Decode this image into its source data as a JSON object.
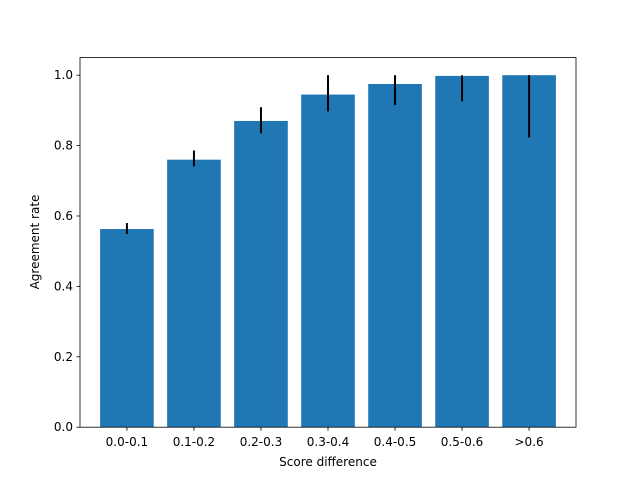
{
  "chart_data": {
    "type": "bar",
    "x_label": "Score difference",
    "y_label": "Agreement rate",
    "categories": [
      "0.0-0.1",
      "0.1-0.2",
      "0.2-0.3",
      "0.3-0.4",
      "0.4-0.5",
      "0.5-0.6",
      ">0.6"
    ],
    "values": [
      0.563,
      0.76,
      0.87,
      0.945,
      0.975,
      0.998,
      1.0
    ],
    "errors_low": [
      0.014,
      0.019,
      0.035,
      0.048,
      0.06,
      0.072,
      0.177
    ],
    "errors_high": [
      0.017,
      0.026,
      0.039,
      0.055,
      0.025,
      0.002,
      0
    ],
    "color": "#1f77b4",
    "error_color": "#000000",
    "ylim": [
      0,
      1.05
    ],
    "yticks": [
      {
        "value": 0,
        "label": "0.0"
      },
      0.2,
      0.4,
      0.6,
      0.8,
      {
        "value": 1,
        "label": "1.0"
      }
    ],
    "grid": false
  }
}
